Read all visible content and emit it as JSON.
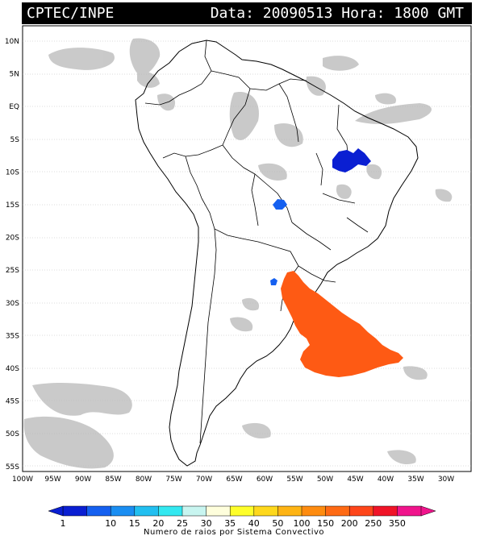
{
  "header": {
    "source": "CPTEC/INPE",
    "datetime": "Data: 20090513 Hora: 1800 GMT"
  },
  "axes": {
    "lat_labels": [
      "10N",
      "5N",
      "EQ",
      "5S",
      "10S",
      "15S",
      "20S",
      "25S",
      "30S",
      "35S",
      "40S",
      "45S",
      "50S",
      "55S"
    ],
    "lon_labels": [
      "100W",
      "95W",
      "90W",
      "85W",
      "80W",
      "75W",
      "70W",
      "65W",
      "60W",
      "55W",
      "50W",
      "45W",
      "40W",
      "35W",
      "30W"
    ]
  },
  "colorbar": {
    "labels": [
      "1",
      "10",
      "15",
      "20",
      "25",
      "30",
      "35",
      "40",
      "50",
      "100",
      "150",
      "200",
      "250",
      "350"
    ],
    "colors": [
      "#0a1fd2",
      "#1560f0",
      "#1a8ef2",
      "#22bff0",
      "#33e8f0",
      "#c8f5f0",
      "#fefedc",
      "#fefe2a",
      "#fed81c",
      "#feb414",
      "#fe8c10",
      "#fe6a14",
      "#fe461a",
      "#f01428",
      "#f0148c"
    ],
    "title": "Numero de raios por Sistema Convectivo"
  },
  "lightning_clusters": [
    {
      "name": "brazil-northeast",
      "color": "#0a1fd2"
    },
    {
      "name": "brazil-central",
      "color": "#1560f0"
    },
    {
      "name": "paraguay",
      "color": "#1560f0"
    },
    {
      "name": "south-atlantic",
      "color": "#fe5a14"
    }
  ]
}
